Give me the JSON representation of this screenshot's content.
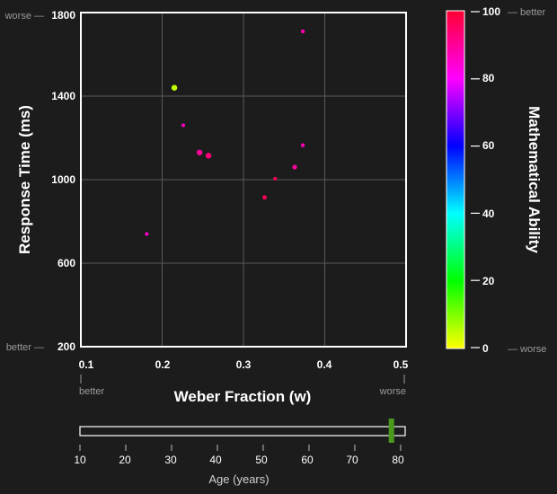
{
  "chart_data": {
    "type": "scatter",
    "xlabel": "Weber Fraction (w)",
    "ylabel": "Response Time (ms)",
    "xlim": [
      0.1,
      0.5
    ],
    "ylim": [
      200,
      1800
    ],
    "x_ticks": [
      "0.1",
      "0.2",
      "0.3",
      "0.4",
      "0.5"
    ],
    "y_ticks": [
      "200",
      "600",
      "1000",
      "1400",
      "1800"
    ],
    "x_hints": {
      "low": "better",
      "high": "worse"
    },
    "y_hints": {
      "low": "better —",
      "high": "worse —"
    },
    "grid": true,
    "points": [
      {
        "x": 0.215,
        "y": 1440,
        "ability": 5,
        "size": 3.2
      },
      {
        "x": 0.373,
        "y": 1710,
        "ability": 88,
        "size": 2.2
      },
      {
        "x": 0.226,
        "y": 1260,
        "ability": 86,
        "size": 2.0
      },
      {
        "x": 0.246,
        "y": 1130,
        "ability": 90,
        "size": 3.2
      },
      {
        "x": 0.257,
        "y": 1115,
        "ability": 93,
        "size": 3.2
      },
      {
        "x": 0.373,
        "y": 1165,
        "ability": 87,
        "size": 2.2
      },
      {
        "x": 0.363,
        "y": 1060,
        "ability": 89,
        "size": 2.6
      },
      {
        "x": 0.339,
        "y": 1005,
        "ability": 97,
        "size": 2.0
      },
      {
        "x": 0.326,
        "y": 915,
        "ability": 96,
        "size": 2.4
      },
      {
        "x": 0.181,
        "y": 740,
        "ability": 85,
        "size": 2.0
      }
    ],
    "colorbar": {
      "label": "Mathematical Ability",
      "range": [
        0,
        100
      ],
      "ticks": [
        "0",
        "20",
        "40",
        "60",
        "80",
        "100"
      ],
      "hint_high": "— better",
      "hint_low": "— worse",
      "stops": [
        "#ffff00",
        "#00ff00",
        "#00ffff",
        "#0000ff",
        "#ff00ff",
        "#ff0033"
      ]
    }
  },
  "age_slider": {
    "label": "Age (years)",
    "range": [
      10,
      81
    ],
    "ticks": [
      "10",
      "20",
      "30",
      "40",
      "50",
      "60",
      "70",
      "80"
    ],
    "value": 78,
    "handle_color": "#4a9a1e"
  }
}
